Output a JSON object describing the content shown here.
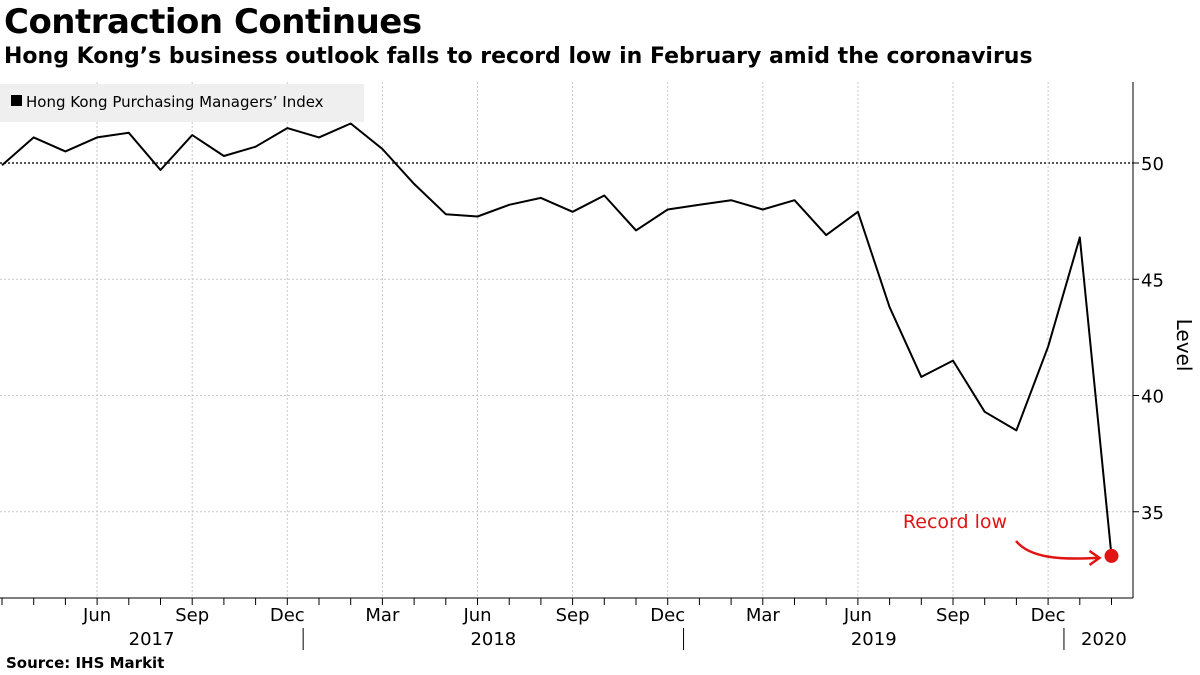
{
  "header": {
    "title": "Contraction Continues",
    "subtitle": "Hong Kong’s business outlook falls to record low in February amid the coronavirus"
  },
  "footer": {
    "source": "Source: IHS Markit"
  },
  "colors": {
    "line": "#000000",
    "highlight": "#e11414",
    "grid": "#c8c8c8",
    "legend_bg": "#efefef"
  },
  "chart_data": {
    "type": "line",
    "title": "Contraction Continues",
    "subtitle": "Hong Kong’s business outlook falls to record low in February amid the coronavirus",
    "ylabel": "Level",
    "ylim": [
      32.5,
      53.5
    ],
    "y_ticks": [
      35,
      40,
      45,
      50
    ],
    "reference_line": 50,
    "legend": {
      "placement": "top-left",
      "entries": [
        "Hong Kong Purchasing Managers’ Index"
      ]
    },
    "x_tick_labels": [
      {
        "month": "2017-06",
        "label": "Jun"
      },
      {
        "month": "2017-09",
        "label": "Sep"
      },
      {
        "month": "2017-12",
        "label": "Dec"
      },
      {
        "month": "2018-03",
        "label": "Mar"
      },
      {
        "month": "2018-06",
        "label": "Jun"
      },
      {
        "month": "2018-09",
        "label": "Sep"
      },
      {
        "month": "2018-12",
        "label": "Dec"
      },
      {
        "month": "2019-03",
        "label": "Mar"
      },
      {
        "month": "2019-06",
        "label": "Jun"
      },
      {
        "month": "2019-09",
        "label": "Sep"
      },
      {
        "month": "2019-12",
        "label": "Dec"
      }
    ],
    "year_labels": [
      {
        "year": "2017",
        "from": "2017-01",
        "to": "2017-12"
      },
      {
        "year": "2018",
        "from": "2018-01",
        "to": "2018-12"
      },
      {
        "year": "2019",
        "from": "2019-01",
        "to": "2019-12"
      },
      {
        "year": "2020",
        "from": "2020-01",
        "to": "2020-02"
      }
    ],
    "series": [
      {
        "name": "Hong Kong Purchasing Managers’ Index",
        "x": [
          "2017-03",
          "2017-04",
          "2017-05",
          "2017-06",
          "2017-07",
          "2017-08",
          "2017-09",
          "2017-10",
          "2017-11",
          "2017-12",
          "2018-01",
          "2018-02",
          "2018-03",
          "2018-04",
          "2018-05",
          "2018-06",
          "2018-07",
          "2018-08",
          "2018-09",
          "2018-10",
          "2018-11",
          "2018-12",
          "2019-01",
          "2019-02",
          "2019-03",
          "2019-04",
          "2019-05",
          "2019-06",
          "2019-07",
          "2019-08",
          "2019-09",
          "2019-10",
          "2019-11",
          "2019-12",
          "2020-01",
          "2020-02"
        ],
        "values": [
          49.9,
          51.1,
          50.5,
          51.1,
          51.3,
          49.7,
          51.2,
          50.3,
          50.7,
          51.5,
          51.1,
          51.7,
          50.6,
          49.1,
          47.8,
          47.7,
          48.2,
          48.5,
          47.9,
          48.6,
          47.1,
          48.0,
          48.2,
          48.4,
          48.0,
          48.4,
          46.9,
          47.9,
          43.8,
          40.8,
          41.5,
          39.3,
          38.5,
          42.1,
          46.8,
          33.1
        ]
      }
    ],
    "annotations": [
      {
        "text": "Record low",
        "point": "2020-02",
        "value": 33.1
      }
    ]
  }
}
